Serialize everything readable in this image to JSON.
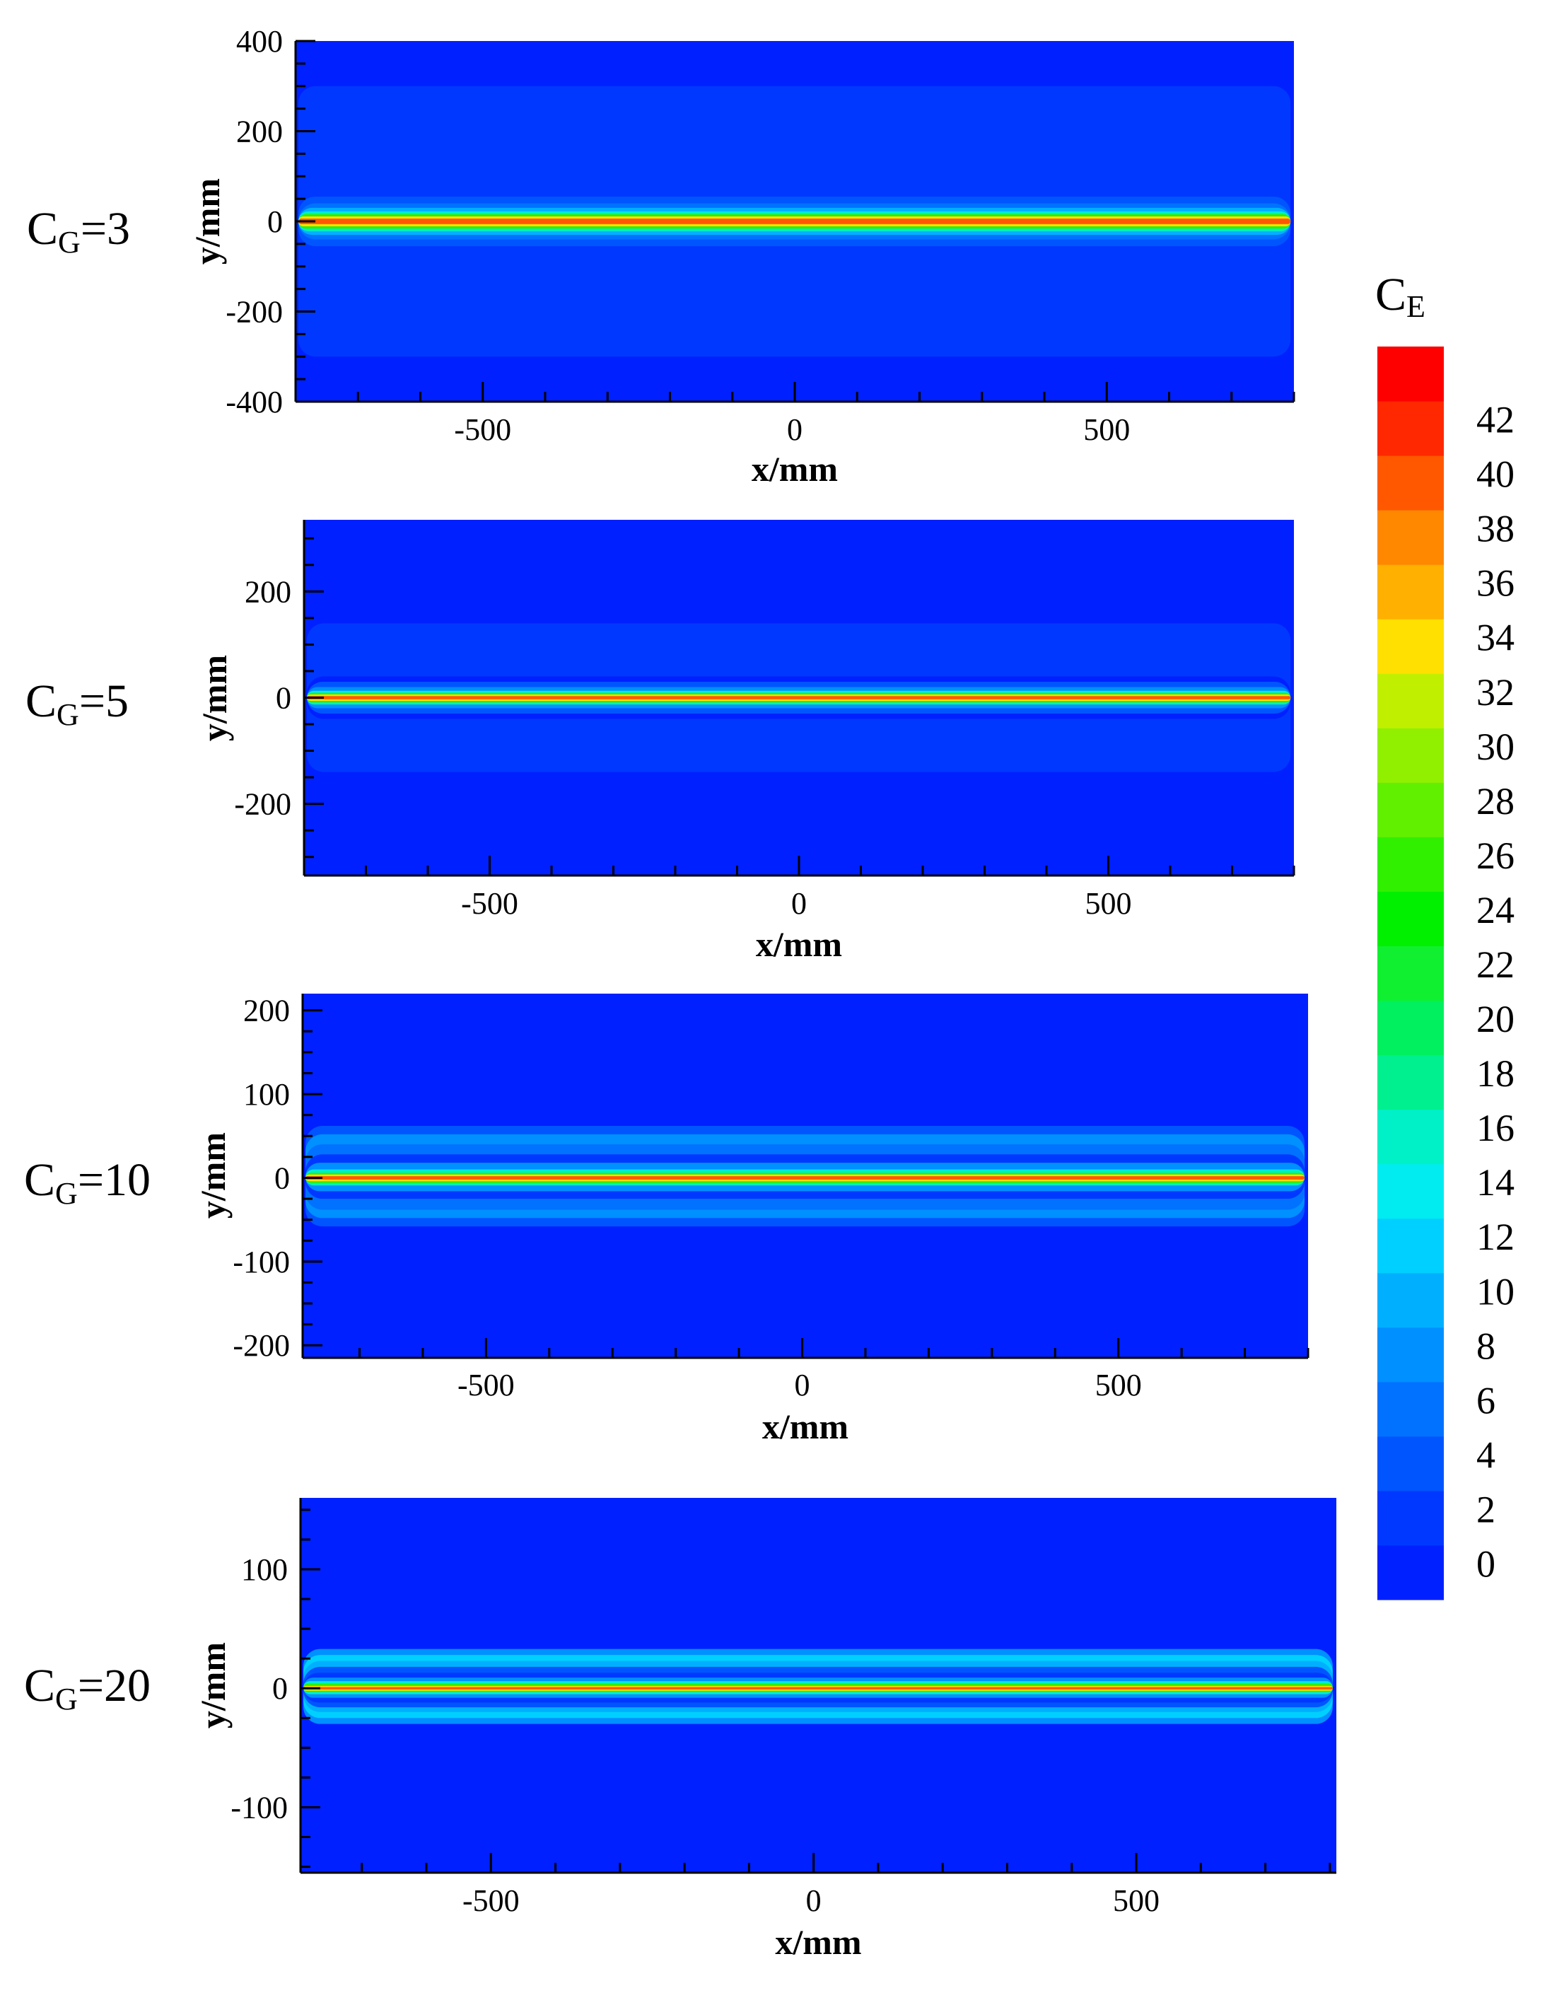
{
  "chart_data": [
    {
      "type": "heatmap",
      "panel_label": {
        "main": "C",
        "sub": "G",
        "eq": "=3"
      },
      "xlabel": "x/mm",
      "ylabel": "y/mm",
      "xlim": [
        -800,
        800
      ],
      "ylim": [
        -400,
        400
      ],
      "xticks": [
        -500,
        0,
        500
      ],
      "xtick_labels": [
        "-500",
        "0",
        "500"
      ],
      "yticks": [
        -400,
        -200,
        0,
        200,
        400
      ],
      "ytick_labels": [
        "-400",
        "-200",
        "0",
        "200",
        "400"
      ],
      "source_end_x": 790,
      "bands": [
        {
          "y0": 300,
          "y1": 400,
          "ce": 1
        },
        {
          "y0": -400,
          "y1": -300,
          "ce": 1
        },
        {
          "y0": -300,
          "y1": 300,
          "ce": 3
        },
        {
          "y0": -55,
          "y1": 55,
          "ce": 5
        },
        {
          "y0": -40,
          "y1": 40,
          "ce": 7
        },
        {
          "y0": -30,
          "y1": 30,
          "ce": 11
        },
        {
          "y0": -22,
          "y1": 22,
          "ce": 17
        },
        {
          "y0": -16,
          "y1": 16,
          "ce": 27
        },
        {
          "y0": -11,
          "y1": 11,
          "ce": 35
        },
        {
          "y0": -6,
          "y1": 6,
          "ce": 41
        }
      ]
    },
    {
      "type": "heatmap",
      "panel_label": {
        "main": "C",
        "sub": "G",
        "eq": "=5"
      },
      "xlabel": "x/mm",
      "ylabel": "y/mm",
      "xlim": [
        -800,
        800
      ],
      "ylim": [
        -335,
        335
      ],
      "xticks": [
        -500,
        0,
        500
      ],
      "xtick_labels": [
        "-500",
        "0",
        "500"
      ],
      "yticks": [
        -200,
        0,
        200
      ],
      "ytick_labels": [
        "-200",
        "0",
        "200"
      ],
      "source_end_x": 790,
      "bands": [
        {
          "y0": -140,
          "y1": 140,
          "ce": 3
        },
        {
          "y0": -40,
          "y1": 40,
          "ce": 1
        },
        {
          "y0": -30,
          "y1": 30,
          "ce": 5
        },
        {
          "y0": -20,
          "y1": 20,
          "ce": 9
        },
        {
          "y0": -13,
          "y1": 13,
          "ce": 17
        },
        {
          "y0": -9,
          "y1": 9,
          "ce": 27
        },
        {
          "y0": -6,
          "y1": 6,
          "ce": 35
        },
        {
          "y0": -3,
          "y1": 3,
          "ce": 41
        }
      ]
    },
    {
      "type": "heatmap",
      "panel_label": {
        "main": "C",
        "sub": "G",
        "eq": "=10"
      },
      "xlabel": "x/mm",
      "ylabel": "y/mm",
      "xlim": [
        -790,
        800
      ],
      "ylim": [
        -215,
        220
      ],
      "xticks": [
        -500,
        0,
        500
      ],
      "xtick_labels": [
        "-500",
        "0",
        "500"
      ],
      "yticks": [
        -200,
        -100,
        0,
        100,
        200
      ],
      "ytick_labels": [
        "-200",
        "-100",
        "0",
        "100",
        "200"
      ],
      "source_end_x": 790,
      "bands": [
        {
          "y0": -58,
          "y1": 62,
          "ce": 5
        },
        {
          "y0": -48,
          "y1": 52,
          "ce": 9
        },
        {
          "y0": -38,
          "y1": 40,
          "ce": 7
        },
        {
          "y0": -25,
          "y1": 28,
          "ce": 3
        },
        {
          "y0": -16,
          "y1": 18,
          "ce": 9
        },
        {
          "y0": -9,
          "y1": 10,
          "ce": 17
        },
        {
          "y0": -6,
          "y1": 6,
          "ce": 27
        },
        {
          "y0": -4,
          "y1": 4,
          "ce": 35
        },
        {
          "y0": -2,
          "y1": 2,
          "ce": 41
        }
      ]
    },
    {
      "type": "heatmap",
      "panel_label": {
        "main": "C",
        "sub": "G",
        "eq": "=20"
      },
      "xlabel": "x/mm",
      "ylabel": "y/mm",
      "xlim": [
        -795,
        810
      ],
      "ylim": [
        -155,
        160
      ],
      "xticks": [
        -500,
        0,
        500
      ],
      "xtick_labels": [
        "-500",
        "0",
        "500"
      ],
      "yticks": [
        -100,
        0,
        100
      ],
      "ytick_labels": [
        "-100",
        "0",
        "100"
      ],
      "source_end_x": 800,
      "bands": [
        {
          "y0": -30,
          "y1": 33,
          "ce": 9
        },
        {
          "y0": -25,
          "y1": 28,
          "ce": 13
        },
        {
          "y0": -20,
          "y1": 23,
          "ce": 11
        },
        {
          "y0": -16,
          "y1": 18,
          "ce": 5
        },
        {
          "y0": -12,
          "y1": 13,
          "ce": 3
        },
        {
          "y0": -8,
          "y1": 9,
          "ce": 9
        },
        {
          "y0": -5,
          "y1": 6,
          "ce": 17
        },
        {
          "y0": -3,
          "y1": 4,
          "ce": 27
        },
        {
          "y0": -2,
          "y1": 2,
          "ce": 35
        },
        {
          "y0": -1,
          "y1": 1,
          "ce": 41
        }
      ]
    }
  ],
  "colorbar": {
    "title_main": "C",
    "title_sub": "E",
    "levels": [
      0,
      2,
      4,
      6,
      8,
      10,
      12,
      14,
      16,
      18,
      20,
      22,
      24,
      26,
      28,
      30,
      32,
      34,
      36,
      38,
      40,
      42,
      44
    ],
    "tick_labels": [
      "0",
      "2",
      "4",
      "6",
      "8",
      "10",
      "12",
      "14",
      "16",
      "18",
      "20",
      "22",
      "24",
      "26",
      "28",
      "30",
      "32",
      "34",
      "36",
      "38",
      "40",
      "42"
    ],
    "colors": [
      "#0020ff",
      "#0038ff",
      "#0055ff",
      "#0072ff",
      "#0090ff",
      "#00b0ff",
      "#00d0ff",
      "#00ecf0",
      "#00f0c8",
      "#00f090",
      "#00f060",
      "#10f030",
      "#00f000",
      "#30f000",
      "#60f000",
      "#90f000",
      "#c0f000",
      "#ffe000",
      "#ffb000",
      "#ff8800",
      "#ff5800",
      "#ff2800",
      "#ff0000"
    ]
  }
}
